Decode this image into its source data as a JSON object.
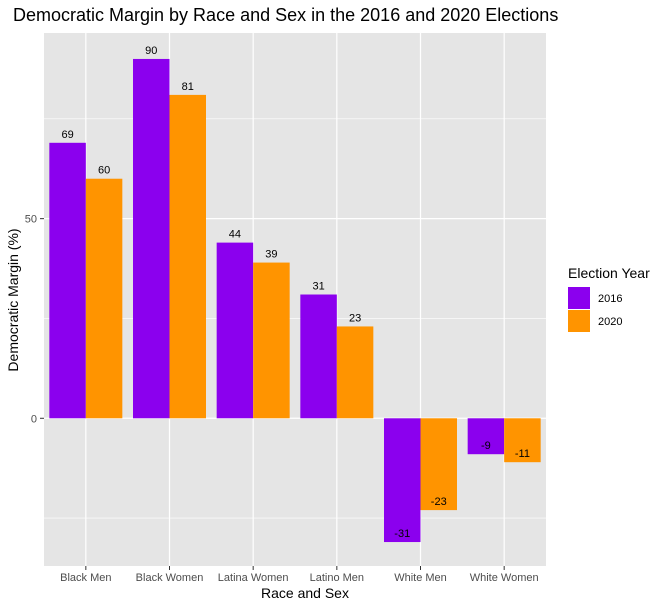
{
  "chart_data": {
    "type": "bar",
    "title": "Democratic Margin by Race and Sex in the 2016 and 2020 Elections",
    "xlabel": "Race and Sex",
    "ylabel": "Democratic Margin (%)",
    "categories": [
      "Black Men",
      "Black Women",
      "Latina Women",
      "Latino Men",
      "White Men",
      "White Women"
    ],
    "series": [
      {
        "name": "2016",
        "color": "#8B00EE",
        "values": [
          69,
          90,
          44,
          31,
          -31,
          -9
        ]
      },
      {
        "name": "2020",
        "color": "#FF9400",
        "values": [
          60,
          81,
          39,
          23,
          -23,
          -11
        ]
      }
    ],
    "data_labels": [
      [
        "69",
        "90",
        "44",
        "31",
        "-31",
        "-9"
      ],
      [
        "60",
        "81",
        "39",
        "23",
        "-23",
        "-11"
      ]
    ],
    "yticks": [
      0,
      50
    ],
    "ytick_labels": [
      "0",
      "50"
    ],
    "ylim": [
      -37,
      96.5
    ],
    "grid": true,
    "legend": {
      "title": "Election Year",
      "position": "right"
    },
    "colors": {
      "panel": "#E5E5E5",
      "grid": "#FFFFFF"
    }
  }
}
